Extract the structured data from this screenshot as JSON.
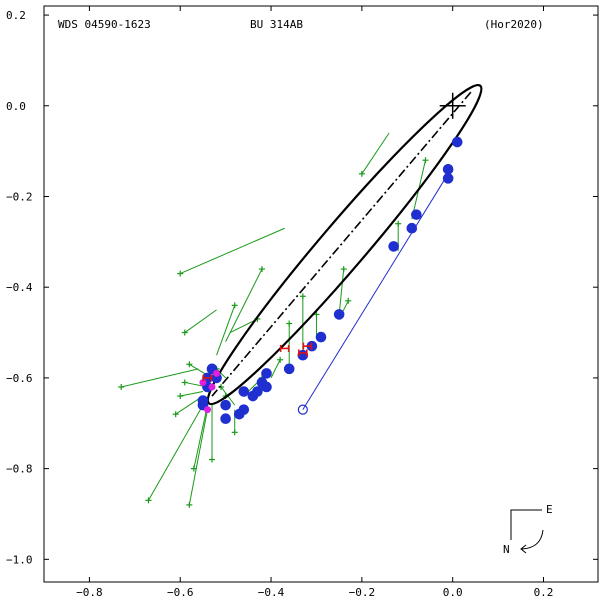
{
  "chart_data": {
    "type": "scatter",
    "header": {
      "left": "WDS 04590-1623",
      "center": "BU  314AB",
      "right": "(Hor2020)"
    },
    "xlim": [
      -0.9,
      0.32
    ],
    "ylim": [
      -1.05,
      0.22
    ],
    "x_ticks": [
      {
        "value": -0.8,
        "label": "−0.8"
      },
      {
        "value": -0.6,
        "label": "−0.6"
      },
      {
        "value": -0.4,
        "label": "−0.4"
      },
      {
        "value": -0.2,
        "label": "−0.2"
      },
      {
        "value": 0.0,
        "label": "0.0"
      },
      {
        "value": 0.2,
        "label": "0.2"
      }
    ],
    "y_ticks": [
      {
        "value": 0.2,
        "label": "0.2"
      },
      {
        "value": 0.0,
        "label": "0.0"
      },
      {
        "value": -0.2,
        "label": "−0.2"
      },
      {
        "value": -0.4,
        "label": "−0.4"
      },
      {
        "value": -0.6,
        "label": "−0.6"
      },
      {
        "value": -0.8,
        "label": "−0.8"
      },
      {
        "value": -1.0,
        "label": "−1.0"
      }
    ],
    "primary": [
      0.0,
      0.0
    ],
    "line_of_nodes": [
      [
        0.04,
        0.03
      ],
      [
        -0.53,
        -0.64
      ]
    ],
    "orbit_ellipse": {
      "center": [
        -0.238,
        -0.306
      ],
      "semi_major": 0.46,
      "semi_minor": 0.05,
      "angle_deg": 49.5
    },
    "compass": {
      "east_label": "E",
      "north_label": "N"
    },
    "green_obs": [
      {
        "obs": [
          -0.6,
          -0.37
        ],
        "pred": [
          -0.37,
          -0.27
        ]
      },
      {
        "obs": [
          -0.59,
          -0.5
        ],
        "pred": [
          -0.52,
          -0.45
        ]
      },
      {
        "obs": [
          -0.73,
          -0.62
        ],
        "pred": [
          -0.56,
          -0.58
        ]
      },
      {
        "obs": [
          -0.67,
          -0.87
        ],
        "pred": [
          -0.55,
          -0.66
        ]
      },
      {
        "obs": [
          -0.58,
          -0.88
        ],
        "pred": [
          -0.54,
          -0.67
        ]
      },
      {
        "obs": [
          -0.57,
          -0.8
        ],
        "pred": [
          -0.54,
          -0.66
        ]
      },
      {
        "obs": [
          -0.53,
          -0.78
        ],
        "pred": [
          -0.53,
          -0.66
        ]
      },
      {
        "obs": [
          -0.61,
          -0.68
        ],
        "pred": [
          -0.55,
          -0.64
        ]
      },
      {
        "obs": [
          -0.6,
          -0.64
        ],
        "pred": [
          -0.55,
          -0.63
        ]
      },
      {
        "obs": [
          -0.59,
          -0.61
        ],
        "pred": [
          -0.54,
          -0.62
        ]
      },
      {
        "obs": [
          -0.58,
          -0.57
        ],
        "pred": [
          -0.53,
          -0.6
        ]
      },
      {
        "obs": [
          -0.48,
          -0.44
        ],
        "pred": [
          -0.52,
          -0.55
        ]
      },
      {
        "obs": [
          -0.42,
          -0.36
        ],
        "pred": [
          -0.5,
          -0.52
        ]
      },
      {
        "obs": [
          -0.43,
          -0.47
        ],
        "pred": [
          -0.49,
          -0.5
        ]
      },
      {
        "obs": [
          -0.42,
          -0.6
        ],
        "pred": [
          -0.45,
          -0.63
        ]
      },
      {
        "obs": [
          -0.48,
          -0.72
        ],
        "pred": [
          -0.48,
          -0.67
        ]
      },
      {
        "obs": [
          -0.38,
          -0.56
        ],
        "pred": [
          -0.4,
          -0.6
        ]
      },
      {
        "obs": [
          -0.36,
          -0.48
        ],
        "pred": [
          -0.36,
          -0.57
        ]
      },
      {
        "obs": [
          -0.33,
          -0.42
        ],
        "pred": [
          -0.33,
          -0.54
        ]
      },
      {
        "obs": [
          -0.3,
          -0.46
        ],
        "pred": [
          -0.3,
          -0.51
        ]
      },
      {
        "obs": [
          -0.24,
          -0.36
        ],
        "pred": [
          -0.25,
          -0.46
        ]
      },
      {
        "obs": [
          -0.23,
          -0.43
        ],
        "pred": [
          -0.25,
          -0.47
        ]
      },
      {
        "obs": [
          -0.2,
          -0.15
        ],
        "pred": [
          -0.14,
          -0.06
        ]
      },
      {
        "obs": [
          -0.12,
          -0.26
        ],
        "pred": [
          -0.12,
          -0.32
        ]
      },
      {
        "obs": [
          -0.06,
          -0.12
        ],
        "pred": [
          -0.09,
          -0.25
        ]
      },
      {
        "obs": [
          -0.51,
          -0.62
        ],
        "pred": [
          -0.48,
          -0.66
        ]
      },
      {
        "obs": [
          -0.52,
          -0.58
        ],
        "pred": [
          -0.5,
          -0.6
        ]
      },
      {
        "obs": [
          -0.5,
          -0.64
        ],
        "pred": [
          -0.47,
          -0.62
        ]
      }
    ],
    "blue_obs": [
      [
        0.01,
        -0.08
      ],
      [
        -0.01,
        -0.14
      ],
      [
        -0.01,
        -0.16
      ],
      [
        -0.08,
        -0.24
      ],
      [
        -0.09,
        -0.27
      ],
      [
        -0.13,
        -0.31
      ],
      [
        -0.25,
        -0.46
      ],
      [
        -0.29,
        -0.51
      ],
      [
        -0.31,
        -0.53
      ],
      [
        -0.33,
        -0.55
      ],
      [
        -0.36,
        -0.58
      ],
      [
        -0.41,
        -0.59
      ],
      [
        -0.41,
        -0.62
      ],
      [
        -0.42,
        -0.61
      ],
      [
        -0.43,
        -0.63
      ],
      [
        -0.44,
        -0.64
      ],
      [
        -0.46,
        -0.63
      ],
      [
        -0.46,
        -0.67
      ],
      [
        -0.47,
        -0.68
      ],
      [
        -0.5,
        -0.66
      ],
      [
        -0.5,
        -0.69
      ],
      [
        -0.53,
        -0.58
      ],
      [
        -0.54,
        -0.6
      ],
      [
        -0.54,
        -0.62
      ],
      [
        -0.55,
        -0.65
      ],
      [
        -0.55,
        -0.66
      ],
      [
        -0.52,
        -0.6
      ]
    ],
    "blue_open": {
      "point": [
        -0.33,
        -0.67
      ],
      "pred": [
        -0.01,
        -0.15
      ]
    },
    "magenta_obs": [
      [
        -0.52,
        -0.59
      ],
      [
        -0.53,
        -0.62
      ],
      [
        -0.54,
        -0.67
      ],
      [
        -0.55,
        -0.61
      ]
    ],
    "red_obs": [
      [
        -0.37,
        -0.535
      ],
      [
        -0.33,
        -0.545
      ],
      [
        -0.32,
        -0.53
      ],
      [
        -0.54,
        -0.6
      ]
    ]
  }
}
